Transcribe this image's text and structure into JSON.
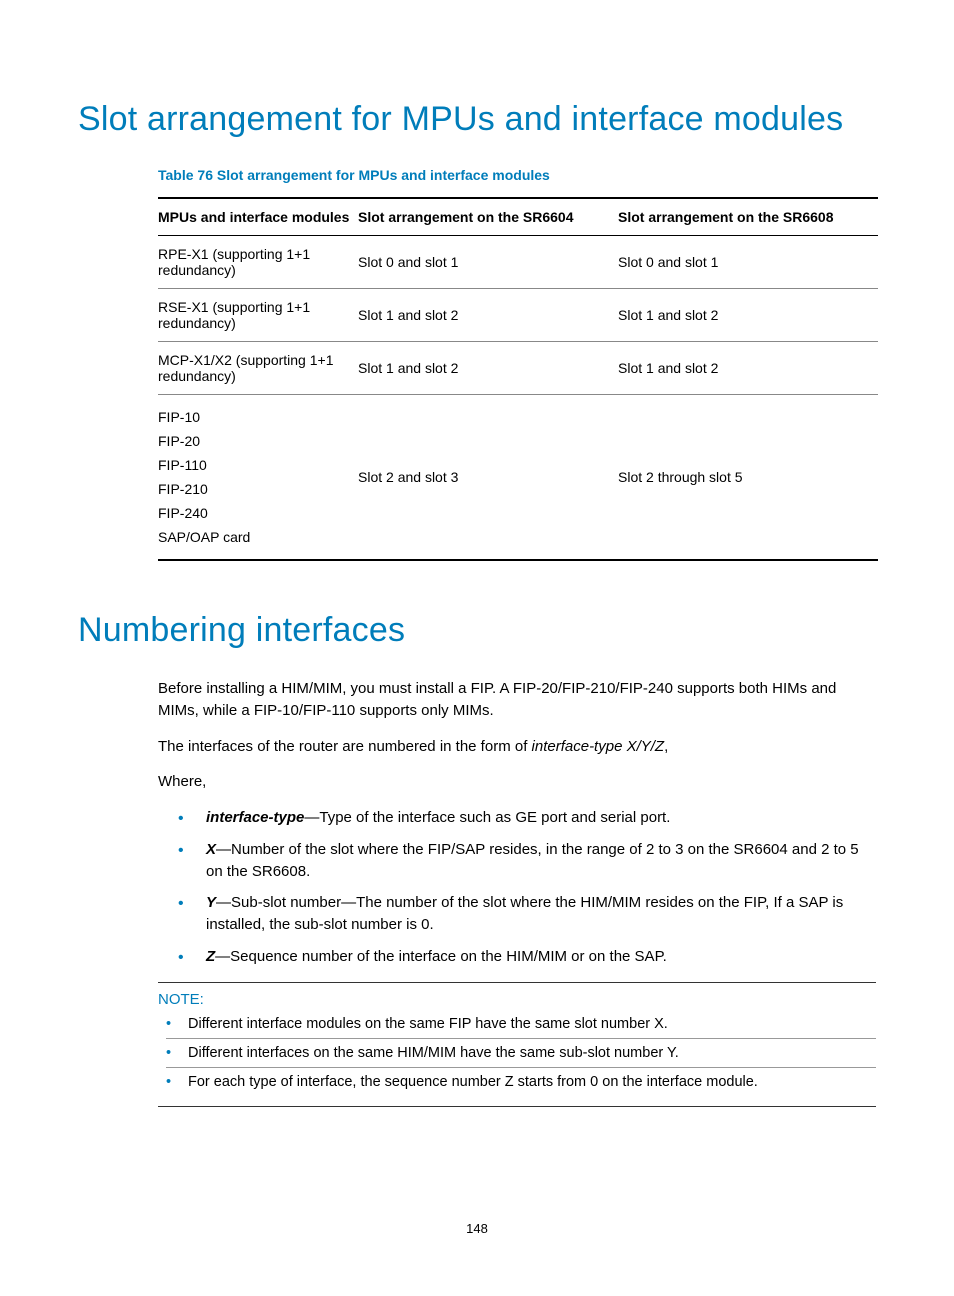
{
  "colors": {
    "accent": "#007dba",
    "text": "#000000",
    "rule": "#888888",
    "background": "#ffffff"
  },
  "h1_a": "Slot arrangement for MPUs and interface modules",
  "table_caption": "Table 76 Slot arrangement for MPUs and interface modules",
  "table": {
    "columns": [
      "MPUs and interface modules",
      "Slot arrangement on the SR6604",
      "Slot arrangement on the SR6608"
    ],
    "rows": [
      {
        "c0": "RPE-X1 (supporting 1+1 redundancy)",
        "c1": "Slot 0 and slot 1",
        "c2": "Slot 0 and slot 1"
      },
      {
        "c0": "RSE-X1 (supporting 1+1 redundancy)",
        "c1": "Slot 1 and slot 2",
        "c2": "Slot 1 and slot 2"
      },
      {
        "c0": "MCP-X1/X2 (supporting 1+1 redundancy)",
        "c1": "Slot 1 and slot 2",
        "c2": "Slot 1 and slot 2"
      }
    ],
    "multi": {
      "items": [
        "FIP-10",
        "FIP-20",
        "FIP-110",
        "FIP-210",
        "FIP-240",
        "SAP/OAP card"
      ],
      "c1": "Slot 2 and slot 3",
      "c2": "Slot 2 through slot 5"
    }
  },
  "h1_b": "Numbering interfaces",
  "para1": "Before installing a HIM/MIM, you must install a FIP. A FIP-20/FIP-210/FIP-240 supports both HIMs and MIMs, while a FIP-10/FIP-110 supports only MIMs.",
  "para2_pre": "The interfaces of the router are numbered in the form of ",
  "para2_it": "interface-type X/Y/Z",
  "para2_post": ",",
  "where": "Where,",
  "defs": {
    "d0_term": "interface-type",
    "d0_rest": "—Type of the interface such as GE port and serial port.",
    "d1_term": "X",
    "d1_rest": "—Number of the slot where the FIP/SAP resides, in the range of 2 to 3 on the SR6604 and 2 to 5 on the SR6608.",
    "d2_term": "Y",
    "d2_rest": "—Sub-slot number—The number of the slot where the HIM/MIM resides on the FIP, If a SAP is installed, the sub-slot number is 0.",
    "d3_term": "Z",
    "d3_rest": "—Sequence number of the interface on the HIM/MIM or on the SAP."
  },
  "note_label": "NOTE:",
  "notes": [
    "Different interface modules on the same FIP have the same slot number X.",
    "Different interfaces on the same HIM/MIM have the same sub-slot number Y.",
    "For each type of interface, the sequence number Z starts from 0 on the interface module."
  ],
  "page_number": "148"
}
